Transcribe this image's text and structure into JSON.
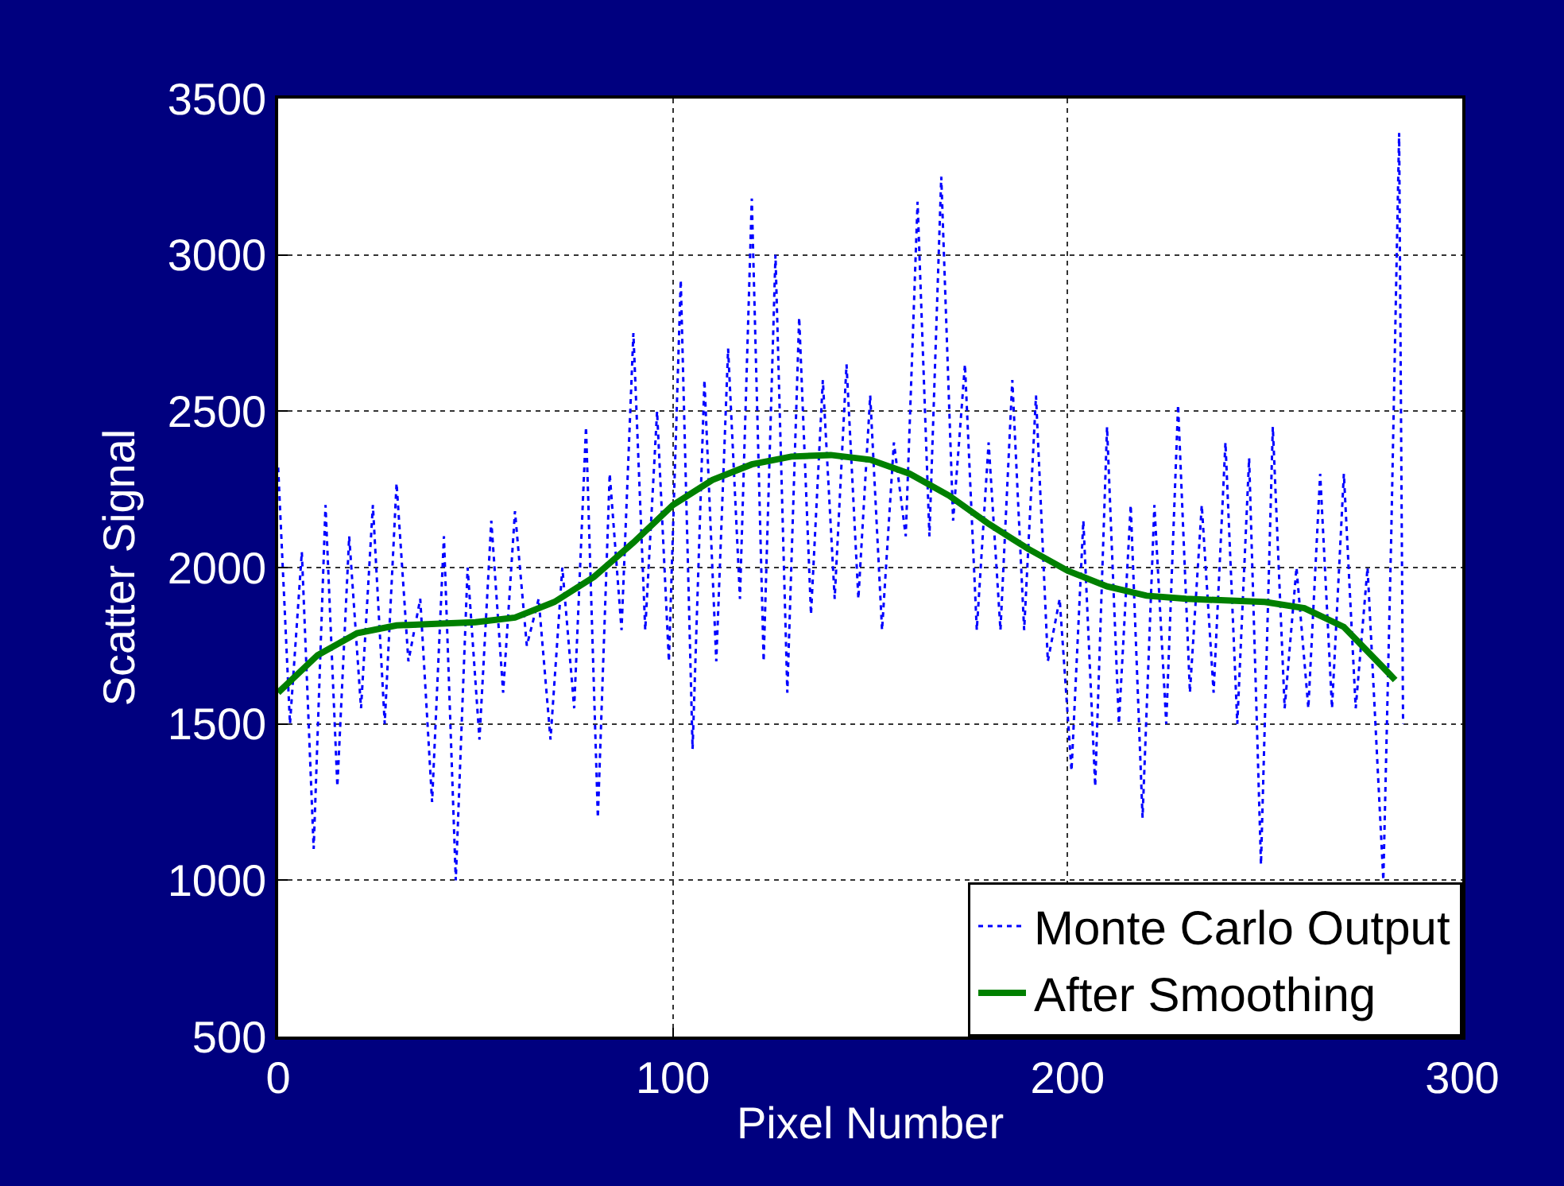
{
  "chart_data": {
    "type": "line",
    "xlabel": "Pixel Number",
    "ylabel": "Scatter Signal",
    "xlim": [
      0,
      300
    ],
    "xticks": [
      0,
      100,
      200,
      300
    ],
    "ylim": [
      500,
      3500
    ],
    "yticks": [
      500,
      1000,
      1500,
      2000,
      2500,
      3000,
      3500
    ],
    "grid": true,
    "legend": "bottom right",
    "marker": "none",
    "series": [
      {
        "name": "Monte Carlo Output",
        "color": "#0000ff",
        "line_style": "dotted",
        "x": [
          0,
          3,
          6,
          9,
          12,
          15,
          18,
          21,
          24,
          27,
          30,
          33,
          36,
          39,
          42,
          45,
          48,
          51,
          54,
          57,
          60,
          63,
          66,
          69,
          72,
          75,
          78,
          81,
          84,
          87,
          90,
          93,
          96,
          99,
          102,
          105,
          108,
          111,
          114,
          117,
          120,
          123,
          126,
          129,
          132,
          135,
          138,
          141,
          144,
          147,
          150,
          153,
          156,
          159,
          162,
          165,
          168,
          171,
          174,
          177,
          180,
          183,
          186,
          189,
          192,
          195,
          198,
          201,
          204,
          207,
          210,
          213,
          216,
          219,
          222,
          225,
          228,
          231,
          234,
          237,
          240,
          243,
          246,
          249,
          252,
          255,
          258,
          261,
          264,
          267,
          270,
          273,
          276,
          280,
          282,
          284,
          285
        ],
        "values": [
          2320,
          1500,
          2050,
          1100,
          2200,
          1300,
          2100,
          1550,
          2200,
          1500,
          2270,
          1700,
          1900,
          1250,
          2100,
          1000,
          2000,
          1450,
          2150,
          1600,
          2180,
          1750,
          1900,
          1450,
          2000,
          1550,
          2450,
          1200,
          2300,
          1800,
          2750,
          1800,
          2500,
          1700,
          2920,
          1420,
          2600,
          1700,
          2700,
          1900,
          3180,
          1700,
          3000,
          1600,
          2800,
          1850,
          2600,
          1900,
          2650,
          1900,
          2550,
          1800,
          2400,
          2100,
          3170,
          2100,
          3250,
          2150,
          2650,
          1800,
          2400,
          1800,
          2600,
          1800,
          2550,
          1700,
          1900,
          1350,
          2150,
          1300,
          2450,
          1500,
          2200,
          1200,
          2200,
          1500,
          2520,
          1600,
          2200,
          1600,
          2400,
          1500,
          2350,
          1050,
          2450,
          1550,
          2000,
          1550,
          2300,
          1550,
          2300,
          1550,
          2000,
          1000,
          2100,
          3390,
          1500
        ]
      },
      {
        "name": "After Smoothing",
        "color": "#008000",
        "line_style": "solid",
        "x": [
          0,
          10,
          20,
          30,
          40,
          50,
          60,
          70,
          80,
          90,
          100,
          110,
          120,
          130,
          140,
          150,
          160,
          170,
          180,
          190,
          200,
          210,
          220,
          230,
          240,
          250,
          260,
          270,
          280,
          283
        ],
        "values": [
          1600,
          1720,
          1790,
          1815,
          1820,
          1825,
          1840,
          1890,
          1970,
          2080,
          2200,
          2280,
          2330,
          2355,
          2360,
          2345,
          2300,
          2230,
          2140,
          2060,
          1990,
          1940,
          1910,
          1900,
          1895,
          1890,
          1870,
          1810,
          1680,
          1640
        ]
      }
    ]
  }
}
